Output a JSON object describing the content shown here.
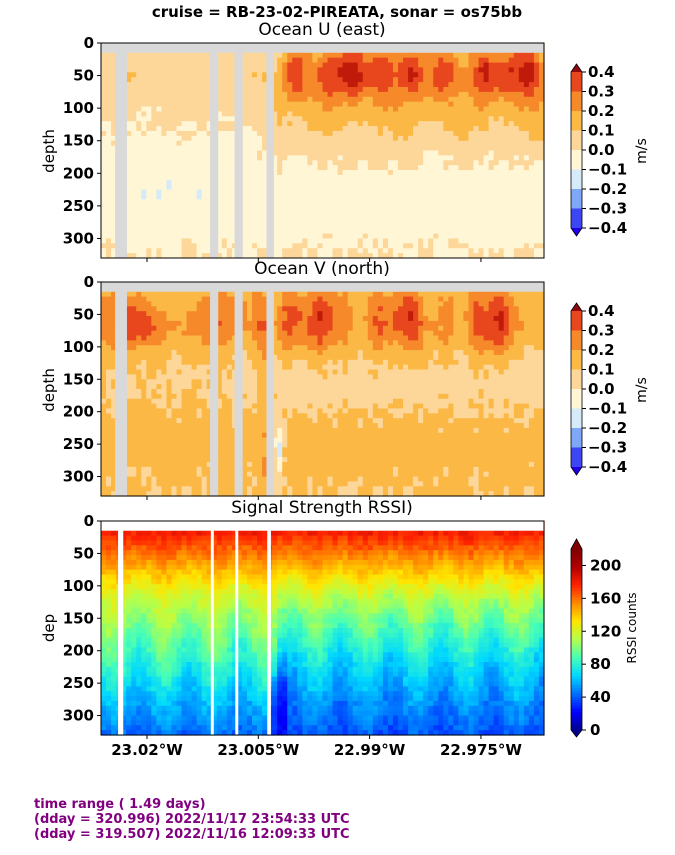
{
  "suptitle": "cruise = RB-23-02-PIREATA,  sonar = os75bb",
  "info": {
    "line1": "time range ( 1.49 days)",
    "line2": "(dday = 320.996) 2022/11/17 23:54:33 UTC",
    "line3": "(dday = 319.507) 2022/11/16 12:09:33 UTC"
  },
  "colors": {
    "gap": "#d9d9d9",
    "uv_levels": [
      "#1f00e6",
      "#3c46f5",
      "#7ea7f7",
      "#d6ebfa",
      "#fff6d6",
      "#fdd79a",
      "#fbb845",
      "#f6892a",
      "#e8471e",
      "#c01a0a",
      "#8e0810"
    ],
    "rssi_palette": [
      "#00008f",
      "#0000ff",
      "#0070ff",
      "#00d8ff",
      "#48ffb6",
      "#b4ff4a",
      "#ffe600",
      "#ff8a00",
      "#ff2200",
      "#b00000",
      "#7f0000"
    ]
  },
  "chart_data": [
    {
      "type": "heatmap",
      "title": "Ocean U (east)",
      "ylabel": "depth",
      "ylim": [
        330,
        0
      ],
      "xlim": [
        -23.0262,
        -22.9665
      ],
      "xticks": [
        {
          "value": -23.02,
          "label": "23.02°W"
        },
        {
          "value": -23.005,
          "label": "23.005°W"
        },
        {
          "value": -22.99,
          "label": "22.99°W"
        },
        {
          "value": -22.975,
          "label": "22.975°W"
        }
      ],
      "yticks": [
        0,
        50,
        100,
        150,
        200,
        250,
        300
      ],
      "colorbar": {
        "label": "m/s",
        "ticks": [
          "0.4",
          "0.3",
          "0.2",
          "0.1",
          "0.0",
          "−0.1",
          "−0.2",
          "−0.3",
          "−0.4"
        ]
      },
      "data_gaps_lon": [
        [
          -23.0243,
          -23.0227
        ],
        [
          -23.0115,
          -23.0104
        ],
        [
          -23.0082,
          -23.0071
        ],
        [
          -23.0039,
          -23.0029
        ]
      ],
      "top_gap_depth": 15
    },
    {
      "type": "heatmap",
      "title": "Ocean V (north)",
      "ylabel": "depth",
      "ylim": [
        330,
        0
      ],
      "xlim": [
        -23.0262,
        -22.9665
      ],
      "xticks": [
        {
          "value": -23.02,
          "label": "23.02°W"
        },
        {
          "value": -23.005,
          "label": "23.005°W"
        },
        {
          "value": -22.99,
          "label": "22.99°W"
        },
        {
          "value": -22.975,
          "label": "22.975°W"
        }
      ],
      "yticks": [
        0,
        50,
        100,
        150,
        200,
        250,
        300
      ],
      "colorbar": {
        "label": "m/s",
        "ticks": [
          "0.4",
          "0.3",
          "0.2",
          "0.1",
          "0.0",
          "−0.1",
          "−0.2",
          "−0.3",
          "−0.4"
        ]
      },
      "data_gaps_lon": [
        [
          -23.0243,
          -23.0227
        ],
        [
          -23.0115,
          -23.0104
        ],
        [
          -23.0082,
          -23.0071
        ],
        [
          -23.0039,
          -23.0029
        ]
      ],
      "top_gap_depth": 15
    },
    {
      "type": "heatmap",
      "title": "Signal Strength RSSI)",
      "ylabel": "dep",
      "ylim": [
        330,
        0
      ],
      "xlim": [
        -23.0262,
        -22.9665
      ],
      "xticks": [
        {
          "value": -23.02,
          "label": "23.02°W"
        },
        {
          "value": -23.005,
          "label": "23.005°W"
        },
        {
          "value": -22.99,
          "label": "22.99°W"
        },
        {
          "value": -22.975,
          "label": "22.975°W"
        }
      ],
      "yticks": [
        0,
        50,
        100,
        150,
        200,
        250,
        300
      ],
      "colorbar": {
        "label": "RSSI counts",
        "ticks": [
          "200",
          "160",
          "120",
          "80",
          "40",
          "0"
        ],
        "range": [
          0,
          220
        ]
      },
      "data_gaps_lon": [
        [
          -23.0239,
          -23.0232
        ],
        [
          -23.0114,
          -23.011
        ],
        [
          -23.0081,
          -23.0077
        ],
        [
          -23.0038,
          -23.0033
        ]
      ],
      "top_gap_depth": 15
    }
  ]
}
